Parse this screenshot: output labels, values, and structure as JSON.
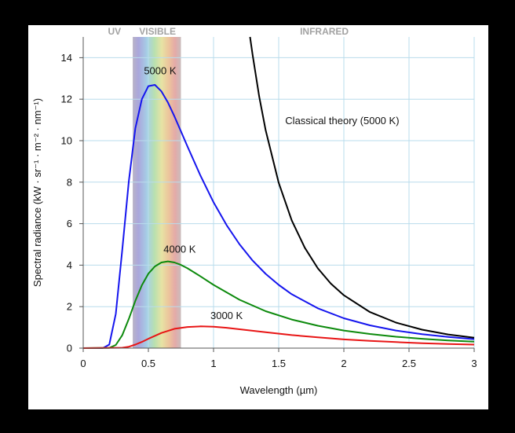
{
  "chart_data": {
    "type": "line",
    "xlabel": "Wavelength (µm)",
    "ylabel": "Spectral radiance (kW · sr⁻¹ · m⁻² · nm⁻¹)",
    "xlim": [
      0,
      3
    ],
    "ylim": [
      0,
      15
    ],
    "x_ticks": [
      {
        "value": 0,
        "label": "0"
      },
      {
        "value": 0.5,
        "label": "0.5"
      },
      {
        "value": 1,
        "label": "1"
      },
      {
        "value": 1.5,
        "label": "1.5"
      },
      {
        "value": 2,
        "label": "2"
      },
      {
        "value": 2.5,
        "label": "2.5"
      },
      {
        "value": 3,
        "label": "3"
      }
    ],
    "y_ticks": [
      {
        "value": 0,
        "label": "0"
      },
      {
        "value": 2,
        "label": "2"
      },
      {
        "value": 4,
        "label": "4"
      },
      {
        "value": 6,
        "label": "6"
      },
      {
        "value": 8,
        "label": "8"
      },
      {
        "value": 10,
        "label": "10"
      },
      {
        "value": 12,
        "label": "12"
      },
      {
        "value": 14,
        "label": "14"
      }
    ],
    "grid": true,
    "band_labels": [
      {
        "text": "UV",
        "x": 0.24
      },
      {
        "text": "VISIBLE",
        "x": 0.57
      },
      {
        "text": "INFRARED",
        "x": 1.85
      }
    ],
    "visible_band": [
      0.38,
      0.75
    ],
    "series": [
      {
        "name": "5000 K",
        "color": "#1515ee",
        "x": [
          0.0,
          0.1,
          0.15,
          0.2,
          0.25,
          0.3,
          0.35,
          0.4,
          0.45,
          0.5,
          0.55,
          0.6,
          0.65,
          0.7,
          0.75,
          0.8,
          0.9,
          1.0,
          1.1,
          1.2,
          1.3,
          1.4,
          1.5,
          1.6,
          1.8,
          2.0,
          2.2,
          2.4,
          2.6,
          2.8,
          3.0
        ],
        "y": [
          0.0,
          0.0,
          0.0,
          0.17,
          1.65,
          4.76,
          8.05,
          10.6,
          12.0,
          12.63,
          12.69,
          12.38,
          11.84,
          11.17,
          10.45,
          9.72,
          8.31,
          7.03,
          5.93,
          5.0,
          4.22,
          3.58,
          3.05,
          2.6,
          1.92,
          1.44,
          1.1,
          0.85,
          0.67,
          0.54,
          0.43
        ]
      },
      {
        "name": "4000 K",
        "color": "#0d8a0d",
        "x": [
          0.0,
          0.2,
          0.25,
          0.3,
          0.35,
          0.4,
          0.45,
          0.5,
          0.55,
          0.6,
          0.65,
          0.7,
          0.75,
          0.8,
          0.9,
          1.0,
          1.2,
          1.4,
          1.6,
          1.8,
          2.0,
          2.2,
          2.4,
          2.6,
          2.8,
          3.0
        ],
        "y": [
          0.0,
          0.01,
          0.15,
          0.63,
          1.41,
          2.28,
          3.03,
          3.59,
          3.94,
          4.13,
          4.18,
          4.13,
          4.01,
          3.85,
          3.46,
          3.05,
          2.33,
          1.78,
          1.38,
          1.08,
          0.85,
          0.68,
          0.55,
          0.45,
          0.37,
          0.31
        ]
      },
      {
        "name": "3000 K",
        "color": "#e81515",
        "x": [
          0.0,
          0.3,
          0.35,
          0.4,
          0.45,
          0.5,
          0.6,
          0.7,
          0.8,
          0.9,
          1.0,
          1.1,
          1.2,
          1.4,
          1.6,
          1.8,
          2.0,
          2.2,
          2.4,
          2.6,
          2.8,
          3.0
        ],
        "y": [
          0.0,
          0.02,
          0.07,
          0.17,
          0.3,
          0.45,
          0.73,
          0.93,
          1.02,
          1.05,
          1.03,
          0.98,
          0.91,
          0.77,
          0.63,
          0.52,
          0.42,
          0.35,
          0.29,
          0.24,
          0.2,
          0.17
        ]
      },
      {
        "name": "Classical theory (5000 K)",
        "color": "#000000",
        "x": [
          1.28,
          1.3,
          1.35,
          1.4,
          1.5,
          1.6,
          1.7,
          1.8,
          1.9,
          2.0,
          2.2,
          2.4,
          2.6,
          2.8,
          3.0
        ],
        "y": [
          15.0,
          14.13,
          12.14,
          10.5,
          7.97,
          6.16,
          4.84,
          3.85,
          3.11,
          2.55,
          1.74,
          1.23,
          0.89,
          0.66,
          0.5
        ]
      }
    ],
    "curve_labels": [
      {
        "text": "5000 K",
        "x": 0.59,
        "y": 13.2
      },
      {
        "text": "4000 K",
        "x": 0.74,
        "y": 4.6
      },
      {
        "text": "3000 K",
        "x": 1.1,
        "y": 1.4
      },
      {
        "text": "Classical theory (5000 K)",
        "x": 1.55,
        "y": 10.8
      }
    ]
  }
}
